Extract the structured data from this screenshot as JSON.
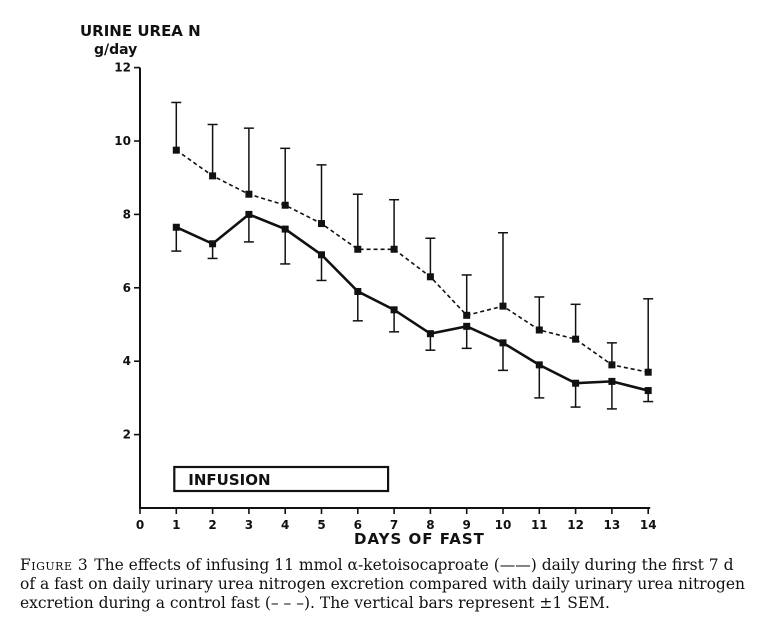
{
  "chart_data": {
    "type": "line",
    "ylabel": "URINE UREA N",
    "yunit": "g/day",
    "xlabel": "DAYS OF FAST",
    "x": [
      1,
      2,
      3,
      4,
      5,
      6,
      7,
      8,
      9,
      10,
      11,
      12,
      13,
      14
    ],
    "xticks": [
      "0",
      "1",
      "2",
      "3",
      "4",
      "5",
      "6",
      "7",
      "8",
      "9",
      "10",
      "11",
      "12",
      "13",
      "14"
    ],
    "yticks": [
      "2",
      "4",
      "6",
      "8",
      "10",
      "12"
    ],
    "xlim": [
      0,
      14
    ],
    "ylim": [
      0,
      12
    ],
    "series": [
      {
        "style": "dashed",
        "values": [
          9.75,
          9.05,
          8.55,
          8.25,
          7.75,
          7.05,
          7.05,
          6.3,
          5.25,
          5.5,
          4.85,
          4.6,
          3.9,
          3.7
        ],
        "error_upper": [
          11.05,
          10.45,
          10.35,
          9.8,
          9.35,
          8.55,
          8.4,
          7.35,
          6.35,
          7.5,
          5.75,
          5.55,
          4.5,
          5.7
        ]
      },
      {
        "style": "solid",
        "values": [
          7.65,
          7.2,
          8.0,
          7.6,
          6.9,
          5.9,
          5.4,
          4.75,
          4.95,
          4.5,
          3.9,
          3.4,
          3.45,
          3.2
        ],
        "error_lower": [
          7.0,
          6.8,
          7.25,
          6.65,
          6.2,
          5.1,
          4.8,
          4.3,
          4.35,
          3.75,
          3.0,
          2.75,
          2.7,
          2.9
        ]
      }
    ],
    "annotation": {
      "label": "INFUSION",
      "x_start": 1,
      "x_end": 7
    },
    "grid": false
  },
  "caption": {
    "figure_label": "Figure 3",
    "text": "The effects of infusing 11 mmol α-ketoisocaproate (——) daily during the first 7 d of a fast on daily urinary urea nitrogen excretion compared with daily urinary urea nitrogen excretion during a control fast (– – –). The vertical bars represent ±1 SEM."
  }
}
